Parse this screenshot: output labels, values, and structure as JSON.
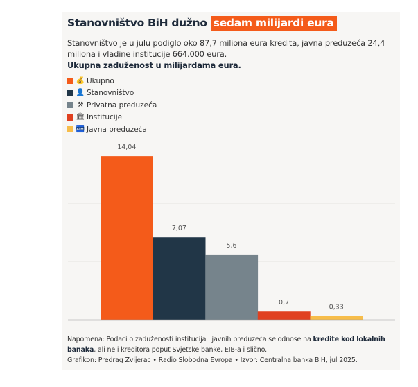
{
  "header": {
    "title_main": "Stanovništvo BiH dužno",
    "title_highlight": "sedam milijardi eura",
    "subtitle": "Stanovništvo je u julu podiglo oko 87,7 miliona eura kredita, javna preduzeća 24,4 miliona i vladine institucije 664.000 eura.",
    "subtitle_bold": "Ukupna zaduženost u milijardama eura."
  },
  "colors": {
    "accent": "#f45b1a",
    "ukupno": "#f45b1a",
    "stanovnistvo": "#213647",
    "privatna": "#76848c",
    "institucije": "#e04020",
    "javna": "#f7bd4a"
  },
  "legend": [
    {
      "label": "Ukupno",
      "icon": "money-bag-icon",
      "glyph": "💰",
      "color": "#f45b1a"
    },
    {
      "label": "Stanovništvo",
      "icon": "person-icon",
      "glyph": "👤",
      "color": "#213647"
    },
    {
      "label": "Privatna preduzeća",
      "icon": "hammer-pick-icon",
      "glyph": "⚒",
      "color": "#76848c"
    },
    {
      "label": "Institucije",
      "icon": "classical-building-icon",
      "glyph": "🏛",
      "color": "#e04020"
    },
    {
      "label": "Javna preduzeća",
      "icon": "ticket-machine-icon",
      "glyph": "🏧",
      "color": "#f7bd4a"
    }
  ],
  "chart_data": {
    "type": "bar",
    "title": "Ukupna zaduženost u milijardama eura.",
    "categories": [
      "Ukupno",
      "Stanovništvo",
      "Privatna preduzeća",
      "Institucije",
      "Javna preduzeća"
    ],
    "values": [
      14.04,
      7.07,
      5.6,
      0.7,
      0.33
    ],
    "value_labels": [
      "14,04",
      "7,07",
      "5,6",
      "0,7",
      "0,33"
    ],
    "colors": [
      "#f45b1a",
      "#213647",
      "#76848c",
      "#e04020",
      "#f7bd4a"
    ],
    "xlabel": "",
    "ylabel": "",
    "ylim": [
      0,
      15.5
    ],
    "gridlines": [
      5,
      10
    ],
    "grid": true,
    "legend_position": "top-left"
  },
  "footer": {
    "note_prefix": "Napomena: Podaci o zaduženosti institucija i javnih preduzeća se odnose na ",
    "note_bold": "kredite kod lokalnih banaka",
    "note_suffix": ", ali ne i kreditora poput Svjetske banke, EIB-a i slično.",
    "credit": "Grafikon: Predrag Zvijerac • Radio Slobodna Evropa • Izvor: Centralna banka BiH, jul 2025."
  }
}
